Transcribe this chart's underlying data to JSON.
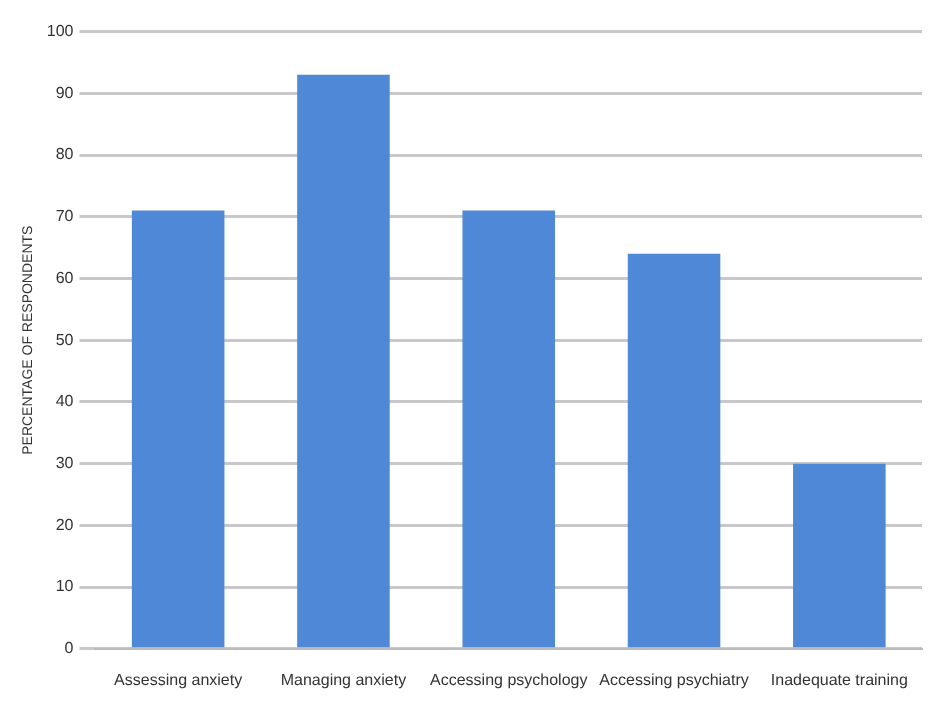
{
  "chart_data": {
    "type": "bar",
    "ylabel": "PERCENTAGE OF RESPONDENTS",
    "categories": [
      "Assessing anxiety",
      "Managing anxiety",
      "Accessing psychology",
      "Accessing psychiatry",
      "Inadequate training"
    ],
    "values": [
      71,
      93,
      71,
      64,
      30
    ],
    "color": "#4f88d6",
    "ylim": [
      0,
      100
    ],
    "yticks": [
      0,
      10,
      20,
      30,
      40,
      50,
      60,
      70,
      80,
      90,
      100
    ],
    "grid": "y"
  }
}
